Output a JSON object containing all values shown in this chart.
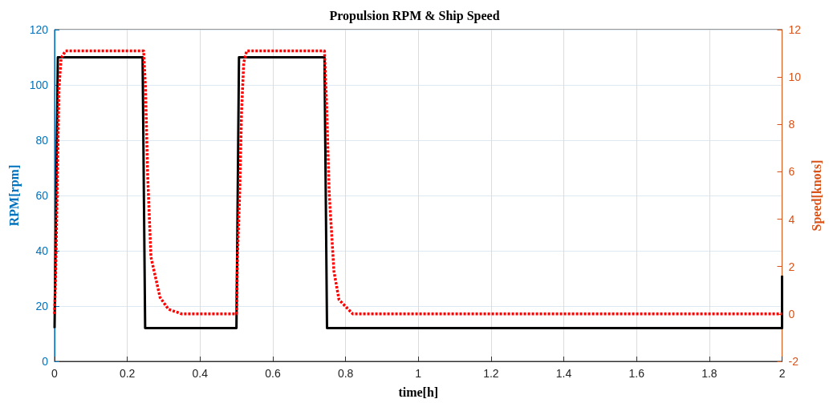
{
  "chart_data": {
    "type": "line",
    "title": "Propulsion RPM & Ship Speed",
    "xlabel": "time[h]",
    "ylabel": "RPM[rpm]",
    "y2label": "Speed[knots]",
    "xlim": [
      0,
      2
    ],
    "xticks": [
      0,
      0.2,
      0.4,
      0.6,
      0.8,
      1,
      1.2,
      1.4,
      1.6,
      1.8,
      2
    ],
    "ylim": [
      0,
      120
    ],
    "yticks": [
      0,
      20,
      40,
      60,
      80,
      100,
      120
    ],
    "y2lim": [
      -2,
      12
    ],
    "y2ticks": [
      -2,
      0,
      2,
      4,
      6,
      8,
      10,
      12
    ],
    "grid": true,
    "marker": "none",
    "series": [
      {
        "color": "#000000",
        "line_style": "solid",
        "x": [
          0,
          0.009,
          0.242,
          0.249,
          0.5,
          0.507,
          0.742,
          0.749,
          2,
          2
        ],
        "values": [
          12,
          110,
          110,
          12,
          12,
          110,
          110,
          12,
          12,
          31
        ]
      },
      {
        "color": "#ff0000",
        "line_style": "dotted",
        "axis": "y2",
        "x": [
          0,
          0.004,
          0.008,
          0.012,
          0.018,
          0.03,
          0.245,
          0.25,
          0.256,
          0.265,
          0.29,
          0.313,
          0.35,
          0.5,
          0.503,
          0.509,
          0.514,
          0.52,
          0.528,
          0.742,
          0.748,
          0.755,
          0.768,
          0.782,
          0.82,
          2
        ],
        "values": [
          0,
          2.5,
          6,
          9.5,
          10.8,
          11.1,
          11.1,
          9.5,
          5.8,
          2.4,
          0.7,
          0.2,
          0,
          0,
          2.5,
          5.1,
          8.5,
          10.6,
          11.1,
          11.1,
          8.8,
          5.1,
          1.8,
          0.6,
          0,
          0
        ]
      }
    ]
  }
}
